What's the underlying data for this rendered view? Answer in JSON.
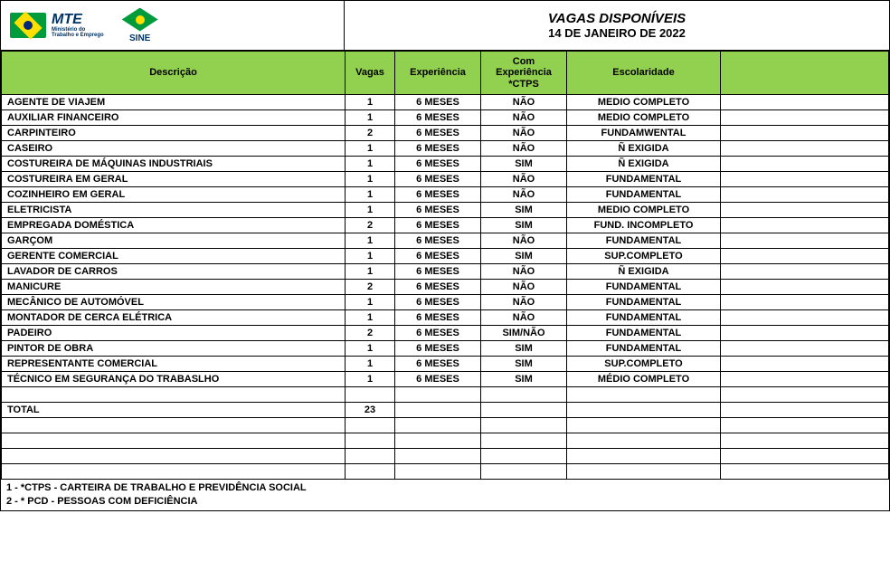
{
  "colors": {
    "header_green": "#92d050",
    "border": "#000000",
    "flag_green": "#009c3b",
    "flag_yellow": "#ffdf00",
    "flag_blue": "#002776",
    "logo_text": "#003366"
  },
  "logos": {
    "mte_big": "MTE",
    "mte_small_line1": "Ministério do",
    "mte_small_line2": "Trabalho e Emprego",
    "sine": "SINE"
  },
  "title": {
    "line1": "VAGAS DISPONÍVEIS",
    "line2": "14 DE JANEIRO DE 2022"
  },
  "columns": {
    "desc": "Descrição",
    "vagas": "Vagas",
    "exp": "Experiência",
    "ctps_line1": "Com",
    "ctps_line2": "Experiência",
    "ctps_line3": "*CTPS",
    "esc": "Escolaridade"
  },
  "rows": [
    {
      "desc": "AGENTE DE VIAJEM",
      "vagas": "1",
      "exp": "6 MESES",
      "ctps": "NÃO",
      "esc": "MEDIO COMPLETO"
    },
    {
      "desc": "AUXILIAR FINANCEIRO",
      "vagas": "1",
      "exp": "6 MESES",
      "ctps": "NÃO",
      "esc": "MEDIO COMPLETO"
    },
    {
      "desc": "CARPINTEIRO",
      "vagas": "2",
      "exp": "6 MESES",
      "ctps": "NÃO",
      "esc": "FUNDAMWENTAL"
    },
    {
      "desc": "CASEIRO",
      "vagas": "1",
      "exp": "6 MESES",
      "ctps": "NÃO",
      "esc": "Ñ EXIGIDA"
    },
    {
      "desc": "COSTUREIRA DE MÁQUINAS INDUSTRIAIS",
      "vagas": "1",
      "exp": "6 MESES",
      "ctps": "SIM",
      "esc": "Ñ EXIGIDA"
    },
    {
      "desc": "COSTUREIRA EM GERAL",
      "vagas": "1",
      "exp": "6 MESES",
      "ctps": "NÃO",
      "esc": "FUNDAMENTAL"
    },
    {
      "desc": "COZINHEIRO EM GERAL",
      "vagas": "1",
      "exp": "6 MESES",
      "ctps": "NÃO",
      "esc": "FUNDAMENTAL"
    },
    {
      "desc": "ELETRICISTA",
      "vagas": "1",
      "exp": "6 MESES",
      "ctps": "SIM",
      "esc": "MEDIO COMPLETO"
    },
    {
      "desc": "EMPREGADA DOMÉSTICA",
      "vagas": "2",
      "exp": "6 MESES",
      "ctps": "SIM",
      "esc": "FUND. INCOMPLETO"
    },
    {
      "desc": "GARÇOM",
      "vagas": "1",
      "exp": "6 MESES",
      "ctps": "NÃO",
      "esc": "FUNDAMENTAL"
    },
    {
      "desc": "GERENTE COMERCIAL",
      "vagas": "1",
      "exp": "6 MESES",
      "ctps": "SIM",
      "esc": "SUP.COMPLETO"
    },
    {
      "desc": "LAVADOR DE CARROS",
      "vagas": "1",
      "exp": "6 MESES",
      "ctps": "NÃO",
      "esc": "Ñ EXIGIDA"
    },
    {
      "desc": "MANICURE",
      "vagas": "2",
      "exp": "6 MESES",
      "ctps": "NÃO",
      "esc": "FUNDAMENTAL"
    },
    {
      "desc": "MECÂNICO DE AUTOMÓVEL",
      "vagas": "1",
      "exp": "6 MESES",
      "ctps": "NÃO",
      "esc": "FUNDAMENTAL"
    },
    {
      "desc": "MONTADOR DE CERCA ELÉTRICA",
      "vagas": "1",
      "exp": "6 MESES",
      "ctps": "NÃO",
      "esc": "FUNDAMENTAL"
    },
    {
      "desc": "PADEIRO",
      "vagas": "2",
      "exp": "6  MESES",
      "ctps": "SIM/NÃO",
      "esc": "FUNDAMENTAL"
    },
    {
      "desc": "PINTOR DE OBRA",
      "vagas": "1",
      "exp": "6 MESES",
      "ctps": "SIM",
      "esc": "FUNDAMENTAL"
    },
    {
      "desc": "REPRESENTANTE COMERCIAL",
      "vagas": "1",
      "exp": "6 MESES",
      "ctps": "SIM",
      "esc": "SUP.COMPLETO"
    },
    {
      "desc": "TÉCNICO EM SEGURANÇA DO TRABASLHO",
      "vagas": "1",
      "exp": "6 MESES",
      "ctps": "SIM",
      "esc": "MÉDIO COMPLETO"
    }
  ],
  "total": {
    "label": "TOTAL",
    "value": "23"
  },
  "empty_rows_after_total": 4,
  "footer": {
    "line1": "1 - *CTPS - CARTEIRA DE TRABALHO E PREVIDÊNCIA SOCIAL",
    "line2": "2 - * PCD - PESSOAS COM DEFICIÊNCIA"
  }
}
